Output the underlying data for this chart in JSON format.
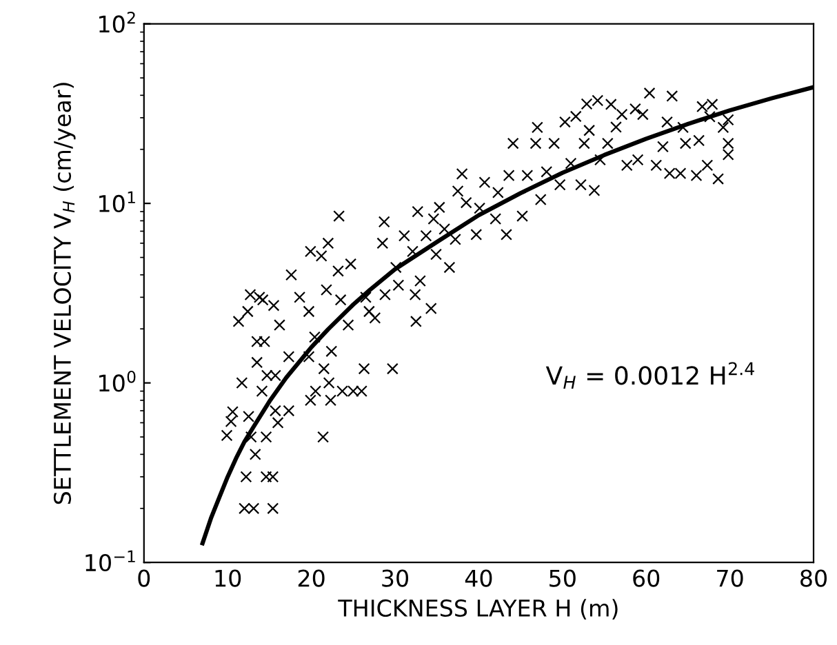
{
  "chart_data": {
    "type": "scatter",
    "xlabel": "THICKNESS LAYER H (m)",
    "ylabel": "SETTLEMENT VELOCITY V$_{H}$ (cm/year)",
    "log": "y",
    "xlim": [
      0,
      80
    ],
    "xticks": [
      0,
      10,
      20,
      30,
      40,
      50,
      60,
      70,
      80
    ],
    "ylim": [
      0.1,
      100
    ],
    "yticks": [
      {
        "value": 0.1,
        "label": "10$^{−1}$"
      },
      {
        "value": 1,
        "label": "10$^{0}$"
      },
      {
        "value": 10,
        "label": "10$^{1}$"
      },
      {
        "value": 100,
        "label": "10$^{2}$"
      }
    ],
    "grid": false,
    "legend": false,
    "annotations": [
      "V$_{H}$ = 0.0012 H$^{2.4}$"
    ],
    "series": [
      {
        "marker": "cross",
        "color": "#000000",
        "x": [
          9.9,
          10.4,
          10.6,
          11.7,
          11.3,
          12.4,
          12.2,
          12.0,
          13.1,
          13.3,
          12.8,
          12.5,
          12.7,
          13.8,
          14.2,
          13.5,
          14.4,
          13.5,
          14.1,
          14.7,
          14.6,
          14.6,
          15.4,
          15.4,
          15.7,
          16.0,
          15.7,
          15.5,
          16.2,
          17.3,
          17.3,
          17.6,
          18.6,
          19.9,
          19.7,
          19.7,
          19.9,
          20.5,
          20.4,
          21.2,
          21.4,
          21.5,
          22.0,
          22.1,
          21.8,
          22.4,
          22.3,
          23.3,
          23.2,
          23.5,
          23.7,
          24.7,
          24.4,
          25.0,
          26.0,
          26.3,
          26.5,
          26.9,
          27.6,
          28.7,
          28.5,
          28.8,
          29.7,
          30.1,
          30.4,
          31.1,
          32.1,
          32.4,
          32.5,
          32.7,
          33.0,
          33.7,
          34.3,
          34.6,
          35.3,
          34.9,
          35.9,
          36.5,
          37.2,
          37.5,
          38.0,
          38.5,
          39.7,
          40.1,
          40.7,
          42.0,
          42.3,
          43.3,
          43.6,
          44.1,
          45.2,
          45.8,
          46.8,
          47.0,
          47.4,
          48.1,
          49.0,
          49.7,
          50.3,
          51.0,
          51.6,
          52.2,
          52.6,
          52.9,
          53.2,
          53.8,
          54.2,
          54.5,
          55.4,
          55.8,
          56.4,
          57.1,
          57.7,
          58.7,
          59.0,
          59.6,
          60.4,
          61.2,
          62.0,
          62.5,
          63.1,
          62.8,
          64.1,
          64.4,
          64.7,
          66.0,
          66.3,
          66.7,
          67.3,
          67.6,
          67.9,
          68.6,
          69.2,
          69.8,
          69.8,
          69.8
        ],
        "values": [
          0.51,
          0.61,
          0.69,
          1.0,
          2.2,
          2.5,
          0.3,
          0.2,
          0.2,
          0.4,
          0.5,
          0.65,
          3.1,
          3.0,
          2.9,
          1.7,
          1.7,
          1.3,
          0.9,
          1.1,
          0.5,
          0.3,
          0.3,
          0.2,
          0.7,
          0.6,
          1.1,
          2.7,
          2.1,
          0.7,
          1.4,
          4.0,
          3.0,
          5.4,
          2.5,
          1.4,
          0.8,
          0.9,
          1.8,
          5.1,
          0.5,
          1.2,
          6.0,
          1.0,
          3.3,
          1.5,
          0.8,
          8.5,
          4.2,
          2.9,
          0.9,
          4.6,
          2.1,
          0.9,
          0.9,
          1.2,
          3.0,
          2.5,
          2.3,
          7.9,
          6.0,
          3.1,
          1.2,
          4.4,
          3.5,
          6.6,
          5.4,
          3.1,
          2.2,
          9.0,
          3.7,
          6.6,
          2.6,
          8.2,
          9.5,
          5.2,
          7.2,
          4.4,
          6.3,
          11.7,
          14.6,
          10.1,
          6.7,
          9.4,
          13.1,
          8.2,
          11.5,
          6.7,
          14.3,
          21.6,
          8.5,
          14.3,
          21.6,
          26.5,
          10.5,
          15.0,
          21.6,
          12.7,
          28.4,
          16.7,
          30.5,
          12.7,
          21.6,
          35.8,
          25.5,
          11.8,
          37.4,
          17.5,
          21.6,
          35.6,
          26.6,
          31.3,
          16.3,
          33.6,
          17.5,
          31.3,
          41.1,
          16.3,
          20.7,
          28.4,
          39.6,
          14.7,
          14.7,
          26.5,
          21.6,
          14.3,
          22.4,
          34.6,
          16.3,
          30.4,
          35.6,
          13.7,
          26.5,
          21.6,
          18.7,
          29.2
        ]
      },
      {
        "type": "line",
        "marker": "none",
        "line_style": "solid",
        "color": "#000000",
        "x": [
          7,
          8,
          9,
          10,
          11,
          12,
          13,
          15,
          17,
          20,
          22,
          25,
          27,
          30,
          35,
          40,
          45,
          50,
          55,
          60,
          65,
          70,
          75,
          80
        ],
        "values": [
          0.128,
          0.176,
          0.23,
          0.3,
          0.38,
          0.47,
          0.56,
          0.79,
          1.07,
          1.58,
          1.99,
          2.73,
          3.3,
          4.3,
          6.1,
          8.6,
          11.4,
          14.8,
          18.6,
          22.9,
          27.7,
          33.0,
          38.5,
          44.4
        ]
      }
    ]
  }
}
